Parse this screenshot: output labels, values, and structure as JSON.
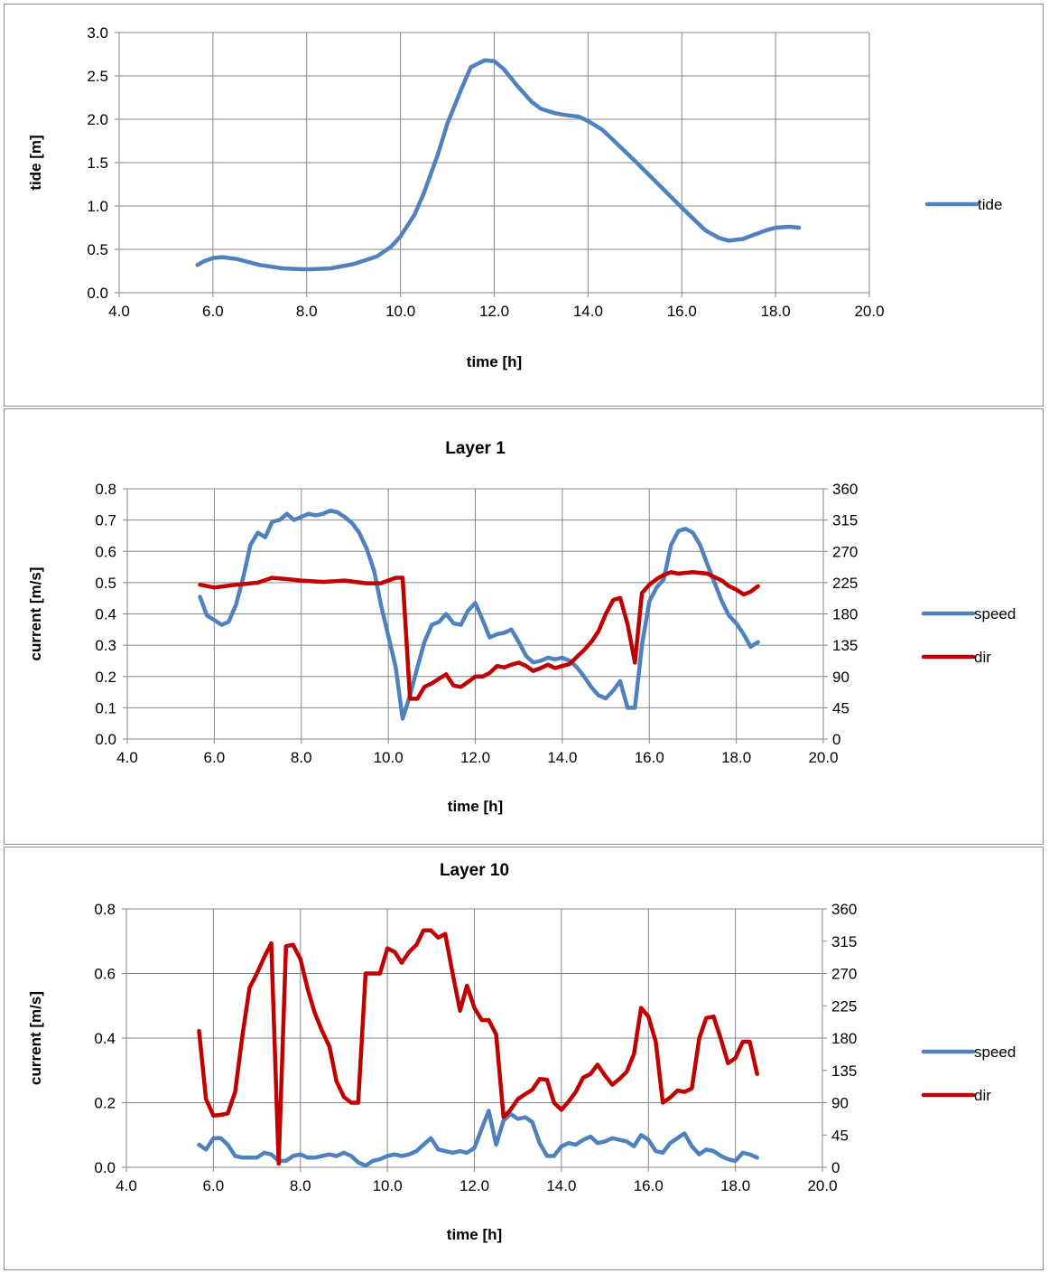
{
  "chart_data": [
    {
      "type": "line",
      "title": "",
      "xlabel": "time [h]",
      "ylabel": "tide [m]",
      "xlim": [
        4,
        20
      ],
      "ylim": [
        0,
        3
      ],
      "xticks": [
        "4.0",
        "6.0",
        "8.0",
        "10.0",
        "12.0",
        "14.0",
        "16.0",
        "18.0",
        "20.0"
      ],
      "yticks": [
        "0.0",
        "0.5",
        "1.0",
        "1.5",
        "2.0",
        "2.5",
        "3.0"
      ],
      "grid": true,
      "legend": "right",
      "series": [
        {
          "name": "tide",
          "color": "#4f81bd",
          "axis": "left",
          "x": [
            5.67,
            5.8,
            6.0,
            6.2,
            6.5,
            7.0,
            7.5,
            8.0,
            8.5,
            9.0,
            9.5,
            9.8,
            10.0,
            10.3,
            10.5,
            10.8,
            11.0,
            11.3,
            11.5,
            11.8,
            12.0,
            12.2,
            12.5,
            12.8,
            13.0,
            13.3,
            13.5,
            13.8,
            14.0,
            14.3,
            14.5,
            15.0,
            15.5,
            16.0,
            16.5,
            16.8,
            17.0,
            17.3,
            17.5,
            17.8,
            18.0,
            18.3,
            18.5
          ],
          "values": [
            0.32,
            0.36,
            0.4,
            0.41,
            0.39,
            0.32,
            0.28,
            0.27,
            0.28,
            0.33,
            0.42,
            0.53,
            0.65,
            0.9,
            1.15,
            1.6,
            1.95,
            2.35,
            2.6,
            2.68,
            2.67,
            2.58,
            2.38,
            2.2,
            2.12,
            2.07,
            2.05,
            2.03,
            1.98,
            1.88,
            1.78,
            1.52,
            1.25,
            0.98,
            0.72,
            0.63,
            0.6,
            0.62,
            0.66,
            0.72,
            0.75,
            0.76,
            0.75
          ]
        }
      ]
    },
    {
      "type": "line",
      "title": "Layer 1",
      "xlabel": "time [h]",
      "ylabel": "current [m/s]",
      "xlim": [
        4,
        20
      ],
      "ylim": [
        0,
        0.8
      ],
      "y2lim": [
        0,
        360
      ],
      "xticks": [
        "4.0",
        "6.0",
        "8.0",
        "10.0",
        "12.0",
        "14.0",
        "16.0",
        "18.0",
        "20.0"
      ],
      "yticks": [
        "0.0",
        "0.1",
        "0.2",
        "0.3",
        "0.4",
        "0.5",
        "0.6",
        "0.7",
        "0.8"
      ],
      "y2ticks": [
        "0",
        "45",
        "90",
        "135",
        "180",
        "225",
        "270",
        "315",
        "360"
      ],
      "grid": true,
      "legend": "right",
      "series": [
        {
          "name": "speed",
          "color": "#4f81bd",
          "axis": "left",
          "x": [
            5.67,
            5.83,
            6.0,
            6.17,
            6.33,
            6.5,
            6.67,
            6.83,
            7.0,
            7.17,
            7.33,
            7.5,
            7.67,
            7.83,
            8.0,
            8.17,
            8.33,
            8.5,
            8.67,
            8.83,
            9.0,
            9.17,
            9.33,
            9.5,
            9.67,
            9.83,
            10.0,
            10.17,
            10.33,
            10.5,
            10.67,
            10.83,
            11.0,
            11.17,
            11.33,
            11.5,
            11.67,
            11.83,
            12.0,
            12.17,
            12.33,
            12.5,
            12.67,
            12.83,
            13.0,
            13.17,
            13.33,
            13.5,
            13.67,
            13.83,
            14.0,
            14.17,
            14.33,
            14.5,
            14.67,
            14.83,
            15.0,
            15.17,
            15.33,
            15.5,
            15.67,
            15.83,
            16.0,
            16.17,
            16.33,
            16.5,
            16.67,
            16.83,
            17.0,
            17.17,
            17.33,
            17.5,
            17.67,
            17.83,
            18.0,
            18.17,
            18.33,
            18.5
          ],
          "values": [
            0.455,
            0.395,
            0.38,
            0.365,
            0.375,
            0.43,
            0.52,
            0.62,
            0.66,
            0.645,
            0.695,
            0.7,
            0.72,
            0.7,
            0.71,
            0.72,
            0.715,
            0.72,
            0.73,
            0.725,
            0.71,
            0.69,
            0.66,
            0.61,
            0.54,
            0.43,
            0.33,
            0.23,
            0.065,
            0.14,
            0.23,
            0.31,
            0.365,
            0.375,
            0.4,
            0.37,
            0.365,
            0.41,
            0.435,
            0.38,
            0.325,
            0.335,
            0.34,
            0.35,
            0.31,
            0.265,
            0.245,
            0.25,
            0.26,
            0.255,
            0.26,
            0.25,
            0.23,
            0.2,
            0.165,
            0.14,
            0.13,
            0.155,
            0.185,
            0.1,
            0.1,
            0.3,
            0.44,
            0.485,
            0.51,
            0.62,
            0.665,
            0.672,
            0.66,
            0.62,
            0.56,
            0.5,
            0.44,
            0.395,
            0.37,
            0.335,
            0.295,
            0.31
          ]
        },
        {
          "name": "dir",
          "color": "#c00000",
          "axis": "right",
          "x": [
            5.67,
            6.0,
            6.5,
            7.0,
            7.33,
            7.67,
            8.0,
            8.5,
            9.0,
            9.5,
            9.83,
            10.0,
            10.17,
            10.33,
            10.5,
            10.67,
            10.83,
            11.0,
            11.17,
            11.33,
            11.5,
            11.67,
            11.83,
            12.0,
            12.17,
            12.33,
            12.5,
            12.67,
            12.83,
            13.0,
            13.17,
            13.33,
            13.5,
            13.67,
            13.83,
            14.0,
            14.17,
            14.33,
            14.5,
            14.67,
            14.83,
            15.0,
            15.17,
            15.33,
            15.5,
            15.67,
            15.83,
            16.0,
            16.17,
            16.33,
            16.5,
            16.67,
            17.0,
            17.33,
            17.5,
            17.67,
            17.83,
            18.0,
            18.17,
            18.33,
            18.5
          ],
          "values": [
            222,
            218,
            222,
            225,
            232,
            230,
            228,
            226,
            228,
            224,
            224,
            228,
            232,
            232,
            58,
            58,
            75,
            80,
            87,
            93,
            77,
            75,
            82,
            90,
            90,
            95,
            105,
            103,
            107,
            110,
            105,
            98,
            102,
            107,
            102,
            105,
            108,
            118,
            128,
            140,
            155,
            180,
            200,
            203,
            165,
            110,
            210,
            222,
            230,
            236,
            240,
            238,
            240,
            238,
            233,
            228,
            220,
            215,
            208,
            212,
            220
          ]
        }
      ]
    },
    {
      "type": "line",
      "title": "Layer 10",
      "xlabel": "time [h]",
      "ylabel": "current [m/s]",
      "xlim": [
        4,
        20
      ],
      "ylim": [
        0,
        0.8
      ],
      "y2lim": [
        0,
        360
      ],
      "xticks": [
        "4.0",
        "6.0",
        "8.0",
        "10.0",
        "12.0",
        "14.0",
        "16.0",
        "18.0",
        "20.0"
      ],
      "yticks": [
        "0.0",
        "0.2",
        "0.4",
        "0.6",
        "0.8"
      ],
      "y2ticks": [
        "0",
        "45",
        "90",
        "135",
        "180",
        "225",
        "270",
        "315",
        "360"
      ],
      "grid": true,
      "legend": "right",
      "series": [
        {
          "name": "speed",
          "color": "#4f81bd",
          "axis": "left",
          "x": [
            5.67,
            5.83,
            6.0,
            6.17,
            6.33,
            6.5,
            6.67,
            6.83,
            7.0,
            7.17,
            7.33,
            7.5,
            7.67,
            7.83,
            8.0,
            8.17,
            8.33,
            8.5,
            8.67,
            8.83,
            9.0,
            9.17,
            9.33,
            9.5,
            9.67,
            9.83,
            10.0,
            10.17,
            10.33,
            10.5,
            10.67,
            10.83,
            11.0,
            11.17,
            11.33,
            11.5,
            11.67,
            11.83,
            12.0,
            12.17,
            12.33,
            12.5,
            12.67,
            12.83,
            13.0,
            13.17,
            13.33,
            13.5,
            13.67,
            13.83,
            14.0,
            14.17,
            14.33,
            14.5,
            14.67,
            14.83,
            15.0,
            15.17,
            15.33,
            15.5,
            15.67,
            15.83,
            16.0,
            16.17,
            16.33,
            16.5,
            16.67,
            16.83,
            17.0,
            17.17,
            17.33,
            17.5,
            17.67,
            17.83,
            18.0,
            18.17,
            18.33,
            18.5
          ],
          "values": [
            0.07,
            0.055,
            0.09,
            0.09,
            0.07,
            0.035,
            0.03,
            0.03,
            0.03,
            0.045,
            0.04,
            0.02,
            0.02,
            0.035,
            0.04,
            0.03,
            0.03,
            0.035,
            0.04,
            0.035,
            0.045,
            0.035,
            0.015,
            0.005,
            0.02,
            0.025,
            0.035,
            0.04,
            0.035,
            0.04,
            0.05,
            0.07,
            0.09,
            0.055,
            0.05,
            0.045,
            0.05,
            0.045,
            0.06,
            0.12,
            0.175,
            0.07,
            0.145,
            0.165,
            0.15,
            0.155,
            0.14,
            0.075,
            0.035,
            0.035,
            0.065,
            0.075,
            0.07,
            0.085,
            0.095,
            0.075,
            0.08,
            0.09,
            0.085,
            0.08,
            0.065,
            0.1,
            0.085,
            0.05,
            0.045,
            0.075,
            0.09,
            0.105,
            0.065,
            0.04,
            0.055,
            0.05,
            0.035,
            0.025,
            0.02,
            0.045,
            0.04,
            0.03
          ]
        },
        {
          "name": "dir",
          "color": "#c00000",
          "axis": "right",
          "x": [
            5.67,
            5.83,
            6.0,
            6.17,
            6.33,
            6.5,
            6.67,
            6.83,
            7.0,
            7.17,
            7.33,
            7.5,
            7.67,
            7.83,
            8.0,
            8.17,
            8.33,
            8.5,
            8.67,
            8.83,
            9.0,
            9.17,
            9.33,
            9.5,
            9.67,
            9.83,
            10.0,
            10.17,
            10.33,
            10.5,
            10.67,
            10.83,
            11.0,
            11.17,
            11.33,
            11.5,
            11.67,
            11.83,
            12.0,
            12.17,
            12.33,
            12.5,
            12.67,
            12.83,
            13.0,
            13.17,
            13.33,
            13.5,
            13.67,
            13.83,
            14.0,
            14.17,
            14.33,
            14.5,
            14.67,
            14.83,
            15.0,
            15.17,
            15.33,
            15.5,
            15.67,
            15.83,
            16.0,
            16.17,
            16.33,
            16.5,
            16.67,
            16.83,
            17.0,
            17.17,
            17.33,
            17.5,
            17.67,
            17.83,
            18.0,
            18.17,
            18.33,
            18.5
          ],
          "values": [
            190,
            95,
            72,
            73,
            75,
            105,
            185,
            250,
            270,
            293,
            312,
            5,
            308,
            310,
            290,
            248,
            215,
            190,
            168,
            120,
            98,
            90,
            90,
            270,
            270,
            270,
            305,
            300,
            285,
            300,
            310,
            330,
            330,
            320,
            325,
            270,
            218,
            253,
            222,
            205,
            205,
            185,
            70,
            80,
            95,
            102,
            108,
            123,
            122,
            90,
            80,
            92,
            105,
            125,
            130,
            143,
            128,
            115,
            123,
            133,
            158,
            222,
            210,
            175,
            90,
            97,
            107,
            105,
            110,
            180,
            208,
            210,
            178,
            145,
            152,
            175,
            175,
            130
          ]
        }
      ]
    }
  ]
}
